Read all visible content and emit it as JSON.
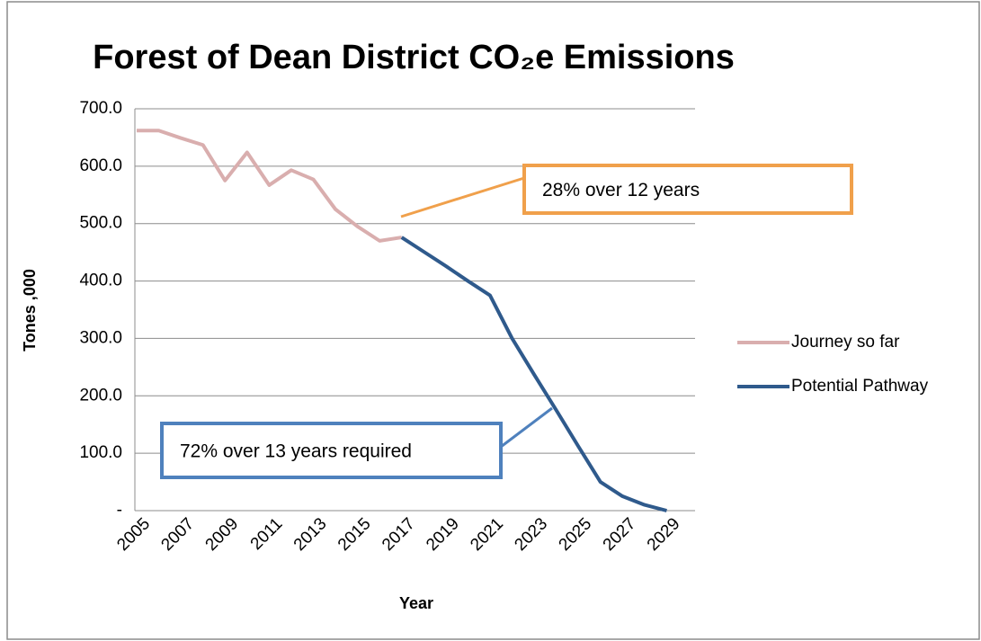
{
  "chart_data": {
    "type": "line",
    "title": "Forest of Dean District CO₂e Emissions",
    "x_label": "Year",
    "y_label": "Tones ,000",
    "categories": [
      "2005",
      null,
      "2007",
      null,
      "2009",
      null,
      "2011",
      null,
      "2013",
      null,
      "2015",
      null,
      "2017",
      null,
      "2019",
      null,
      "2021",
      null,
      "2023",
      null,
      "2025",
      null,
      "2027",
      null,
      "2029",
      null
    ],
    "series": [
      {
        "name": "Journey so far",
        "color": "#d9aeae",
        "values": [
          662,
          662,
          649,
          637,
          575,
          624,
          567,
          593,
          577,
          525,
          495,
          470,
          476,
          null,
          null,
          null,
          null,
          null,
          null,
          null,
          null,
          null,
          null,
          null,
          null,
          null
        ]
      },
      {
        "name": "Potential Pathway",
        "color": "#2f5a8c",
        "values": [
          null,
          null,
          null,
          null,
          null,
          null,
          null,
          null,
          null,
          null,
          null,
          null,
          476,
          451,
          426,
          400,
          375,
          300,
          237,
          175,
          112,
          50,
          25,
          10,
          0,
          null
        ]
      }
    ],
    "ylim": [
      0,
      700
    ],
    "yticks": [
      {
        "value": 0,
        "label": "-"
      },
      {
        "value": 100,
        "label": "100.0"
      },
      {
        "value": 200,
        "label": "200.0"
      },
      {
        "value": 300,
        "label": "300.0"
      },
      {
        "value": 400,
        "label": "400.0"
      },
      {
        "value": 500,
        "label": "500.0"
      },
      {
        "value": 600,
        "label": "600.0"
      },
      {
        "value": 700,
        "label": "700.0"
      }
    ],
    "grid": true,
    "legend": "right",
    "annotations": [
      {
        "text": "28% over 12 years",
        "color": "#f0a04b"
      },
      {
        "text": "72% over 13 years required",
        "color": "#4f81bd"
      }
    ]
  }
}
